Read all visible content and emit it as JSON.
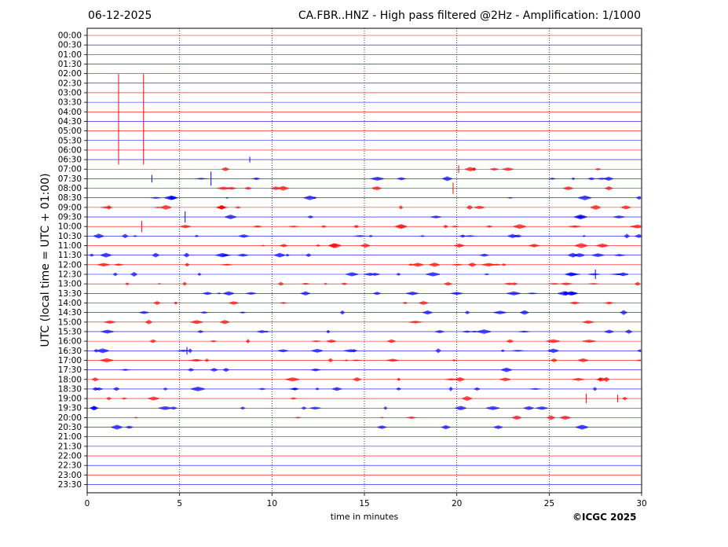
{
  "header": {
    "date": "06-12-2025",
    "title": "CA.FBR..HNZ - High pass filtered @2Hz - Amplification: 1/1000"
  },
  "footer": {
    "copyright": "©ICGC 2025"
  },
  "colors": {
    "odd_trace": "#ff0000",
    "even_trace": "#0000ff",
    "grid": "#0000aa"
  },
  "chart_data": {
    "type": "line",
    "title": "CA.FBR..HNZ - High pass filtered @2Hz - Amplification: 1/1000",
    "xlabel": "time in minutes",
    "ylabel": "UTC (local time = UTC + 01:00)",
    "xlim": [
      0,
      30
    ],
    "x_ticks": [
      0,
      5,
      10,
      15,
      20,
      25,
      30
    ],
    "vertical_gridlines": [
      5,
      10,
      15,
      20,
      25
    ],
    "y_ticks": [
      "00:00",
      "00:30",
      "01:00",
      "01:30",
      "02:00",
      "02:30",
      "03:00",
      "03:30",
      "04:00",
      "04:30",
      "05:00",
      "05:30",
      "06:00",
      "06:30",
      "07:00",
      "07:30",
      "08:00",
      "08:30",
      "09:00",
      "09:30",
      "10:00",
      "10:30",
      "11:00",
      "11:30",
      "12:00",
      "12:30",
      "13:00",
      "13:30",
      "14:00",
      "14:30",
      "15:00",
      "15:30",
      "16:00",
      "16:30",
      "17:00",
      "17:30",
      "18:00",
      "18:30",
      "19:00",
      "19:30",
      "20:00",
      "20:30",
      "21:00",
      "21:30",
      "22:00",
      "22:30",
      "23:00",
      "23:30"
    ],
    "trace_colors": [
      "#ff0000",
      "#0000ff"
    ],
    "events": [
      {
        "row": "04:00",
        "minute": 1.7,
        "amplitude": 8
      },
      {
        "row": "04:00",
        "minute": 3.05,
        "amplitude": 8
      },
      {
        "row": "06:30",
        "minute": 8.8,
        "amplitude": 0.6
      },
      {
        "row": "07:00",
        "minute": 20.1,
        "amplitude": 0.8
      },
      {
        "row": "07:30",
        "minute": 6.7,
        "amplitude": 1.5
      },
      {
        "row": "07:30",
        "minute": 3.5,
        "amplitude": 0.8
      },
      {
        "row": "08:00",
        "minute": 19.8,
        "amplitude": 1.2
      },
      {
        "row": "09:30",
        "minute": 5.3,
        "amplitude": 1.2
      },
      {
        "row": "10:00",
        "minute": 2.95,
        "amplitude": 1.2
      },
      {
        "row": "12:30",
        "minute": 27.5,
        "amplitude": 1.0
      },
      {
        "row": "16:30",
        "minute": 5.4,
        "amplitude": 0.8
      },
      {
        "row": "19:00",
        "minute": 27.0,
        "amplitude": 1.0
      },
      {
        "row": "19:00",
        "minute": 28.7,
        "amplitude": 0.8
      }
    ]
  }
}
